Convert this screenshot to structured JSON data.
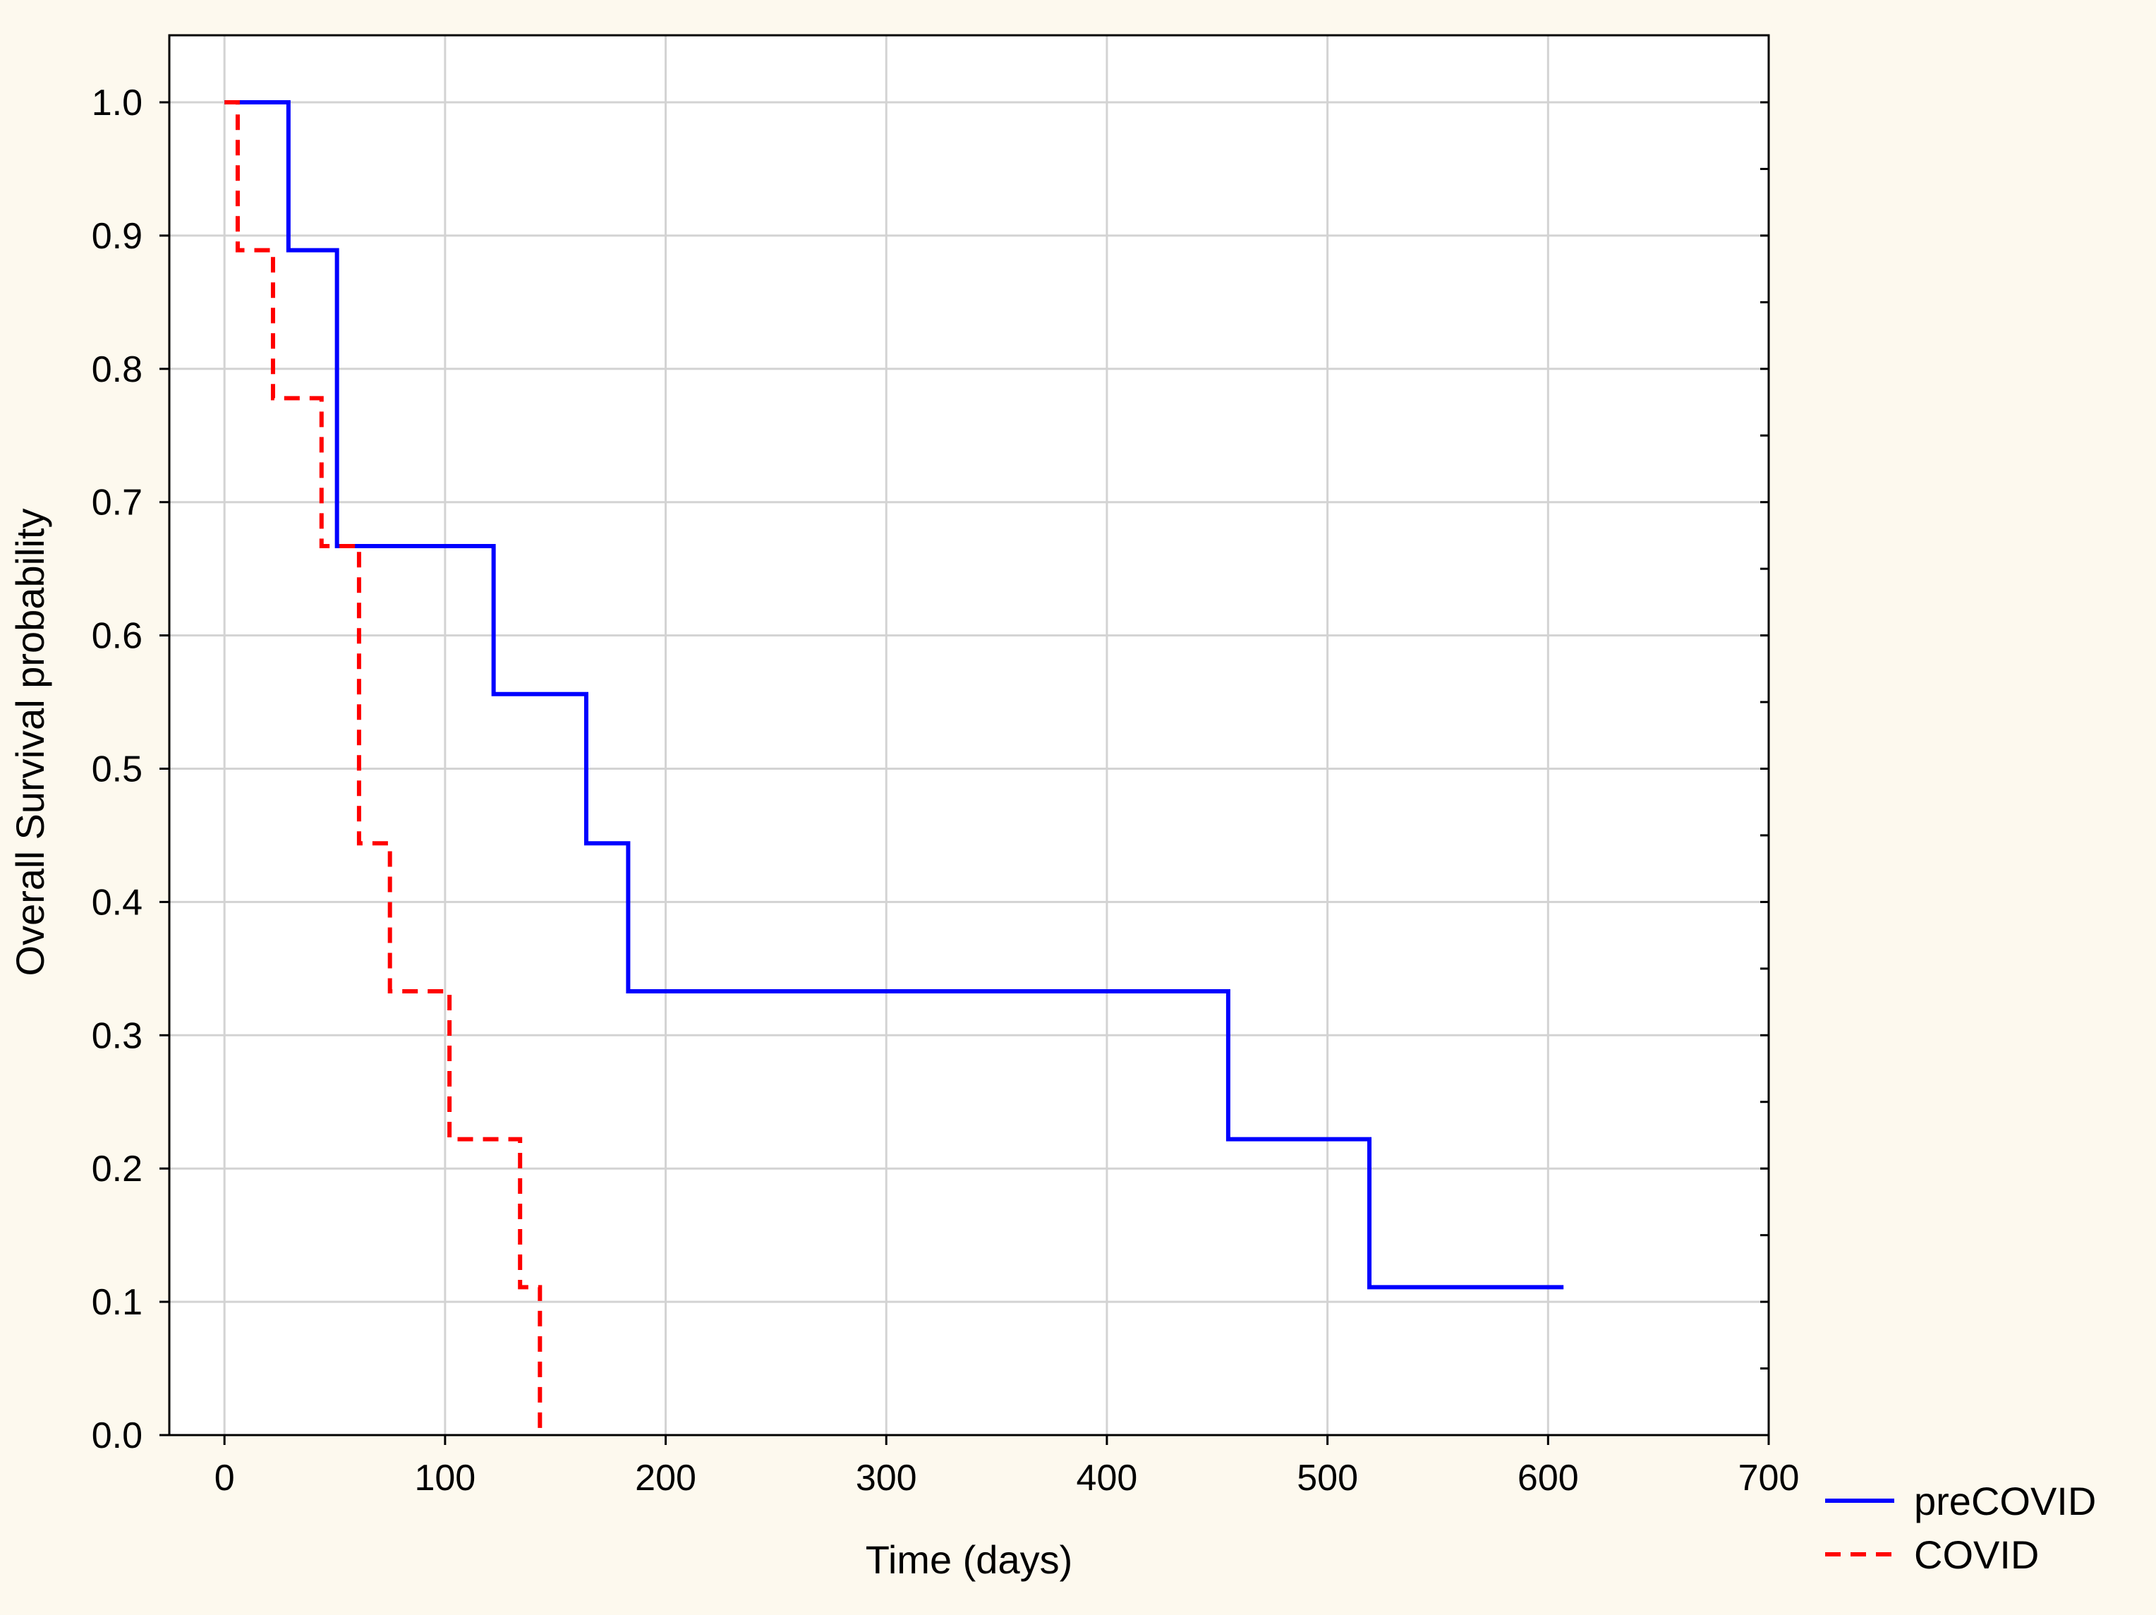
{
  "colors": {
    "background": "#fdf9ee",
    "plot_background": "#ffffff",
    "grid": "#d3d3d3",
    "axis": "#000000"
  },
  "chart_data": {
    "type": "line",
    "step": true,
    "title": "",
    "xlabel": "Time (days)",
    "ylabel": "Overall Survival probability",
    "xlim": [
      -25,
      700
    ],
    "ylim": [
      0.0,
      1.0
    ],
    "x_ticks": [
      0,
      100,
      200,
      300,
      400,
      500,
      600,
      700
    ],
    "x_tick_labels": [
      "0",
      "100",
      "200",
      "300",
      "400",
      "500",
      "600",
      "700"
    ],
    "y_ticks": [
      0.0,
      0.1,
      0.2,
      0.3,
      0.4,
      0.5,
      0.6,
      0.7,
      0.8,
      0.9,
      1.0
    ],
    "y_tick_labels": [
      "0.0",
      "0.1",
      "0.2",
      "0.3",
      "0.4",
      "0.5",
      "0.6",
      "0.7",
      "0.8",
      "0.9",
      "1.0"
    ],
    "grid": true,
    "legend_position": "bottom-right outside",
    "series": [
      {
        "name": "preCOVID",
        "color": "#0000ff",
        "style": "solid",
        "x": [
          0,
          29,
          51,
          122,
          164,
          183,
          455,
          519,
          607
        ],
        "y": [
          1.0,
          0.889,
          0.667,
          0.556,
          0.444,
          0.333,
          0.222,
          0.111,
          0.111
        ]
      },
      {
        "name": "COVID",
        "color": "#ff0000",
        "style": "dashed",
        "x": [
          0,
          6,
          22,
          44,
          61,
          75,
          102,
          134,
          143,
          143
        ],
        "y": [
          1.0,
          0.889,
          0.778,
          0.667,
          0.444,
          0.333,
          0.222,
          0.111,
          0.0,
          0.0
        ]
      }
    ]
  }
}
